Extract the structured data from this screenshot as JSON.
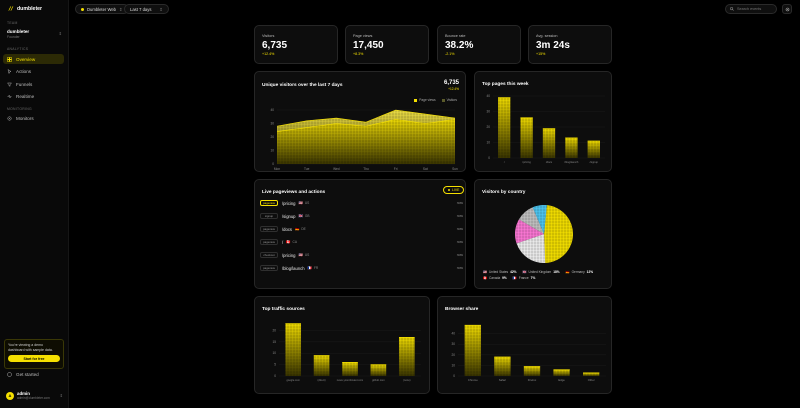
{
  "app": {
    "name": "dumbleter"
  },
  "sidebar": {
    "team_label": "TEAM",
    "team_name": "dumbleter",
    "team_sub": "Founder",
    "analytics_label": "ANALYTICS",
    "monitoring_label": "MONITORING",
    "items": [
      {
        "label": "Overview"
      },
      {
        "label": "Actions"
      },
      {
        "label": "Funnels"
      },
      {
        "label": "Realtime"
      },
      {
        "label": "Monitors"
      }
    ],
    "demo_text": "You're viewing a demo dashboard with sample data.",
    "demo_button": "Start for free",
    "get_started": "Get started",
    "user_name": "admin",
    "user_email": "admin@dumbleter.com"
  },
  "topbar": {
    "site": "Dumbleter Web",
    "range": "Last 7 days",
    "search_placeholder": "Search events"
  },
  "stats": [
    {
      "label": "Visitors",
      "value": "6,735",
      "change": "+12.4%"
    },
    {
      "label": "Page views",
      "value": "17,450",
      "change": "+8.3%"
    },
    {
      "label": "Bounce rate",
      "value": "38.2%",
      "change": "-2.1%"
    },
    {
      "label": "Avg. session",
      "value": "3m 24s",
      "change": "+15%"
    }
  ],
  "visitors_chart": {
    "title": "Unique visitors over the last 7 days",
    "total": "6,735",
    "total_change": "+12.4%",
    "legend": [
      "Page views",
      "Visitors"
    ]
  },
  "top_pages": {
    "title": "Top pages this week"
  },
  "live": {
    "title": "Live pageviews and actions",
    "badge": "LIVE",
    "rows": [
      {
        "type": "pageview",
        "path": "/pricing",
        "flag": "🇺🇸",
        "cc": "US",
        "time": "now"
      },
      {
        "type": "signup",
        "path": "/signup",
        "flag": "🇬🇧",
        "cc": "GB",
        "time": "now"
      },
      {
        "type": "pageview",
        "path": "/docs",
        "flag": "🇩🇪",
        "cc": "DE",
        "time": "now"
      },
      {
        "type": "pageview",
        "path": "/",
        "flag": "🇨🇦",
        "cc": "CA",
        "time": "now"
      },
      {
        "type": "checkout",
        "path": "/pricing",
        "flag": "🇺🇸",
        "cc": "US",
        "time": "now"
      },
      {
        "type": "pageview",
        "path": "/blog/launch",
        "flag": "🇫🇷",
        "cc": "FR",
        "time": "now"
      }
    ]
  },
  "countries": {
    "title": "Visitors by country",
    "legend": [
      {
        "flag": "🇺🇸",
        "name": "United States",
        "pct": "42%"
      },
      {
        "flag": "🇬🇧",
        "name": "United Kingdom",
        "pct": "18%"
      },
      {
        "flag": "🇩🇪",
        "name": "Germany",
        "pct": "12%"
      },
      {
        "flag": "🇨🇦",
        "name": "Canada",
        "pct": "9%"
      },
      {
        "flag": "🇫🇷",
        "name": "France",
        "pct": "7%"
      }
    ]
  },
  "sources": {
    "title": "Top traffic sources"
  },
  "browsers": {
    "title": "Browser share"
  },
  "colors": {
    "accent": "#f5e000",
    "bg": "#000000",
    "card": "#0d0d0d"
  },
  "chart_data": [
    {
      "type": "area",
      "title": "Unique visitors over the last 7 days",
      "categories": [
        "Mon",
        "Tue",
        "Wed",
        "Thu",
        "Fri",
        "Sat",
        "Sun"
      ],
      "series": [
        {
          "name": "Page views",
          "values": [
            28,
            32,
            34,
            31,
            40,
            37,
            34
          ]
        },
        {
          "name": "Visitors",
          "values": [
            24,
            27,
            30,
            28,
            33,
            30,
            33
          ]
        }
      ],
      "ylim": [
        0,
        40
      ],
      "yticks": [
        0,
        10,
        20,
        30,
        40
      ]
    },
    {
      "type": "bar",
      "title": "Top pages this week",
      "categories": [
        "/",
        "/pricing",
        "/docs",
        "/blog/launch",
        "/signup"
      ],
      "values": [
        39,
        26,
        19,
        13,
        11
      ],
      "ylim": [
        0,
        40
      ],
      "yticks": [
        0,
        10,
        20,
        30,
        40
      ]
    },
    {
      "type": "pie",
      "title": "Visitors by country",
      "categories": [
        "United States",
        "United Kingdom",
        "Germany",
        "Canada",
        "France"
      ],
      "values": [
        42,
        18,
        12,
        9,
        7
      ]
    },
    {
      "type": "bar",
      "title": "Top traffic sources",
      "categories": [
        "google.com",
        "(direct)",
        "news.ycombinator.com",
        "github.com",
        "(none)"
      ],
      "values": [
        23,
        9,
        6,
        5,
        17
      ],
      "ylim": [
        0,
        25
      ],
      "yticks": [
        0,
        5,
        10,
        15,
        20
      ]
    },
    {
      "type": "bar",
      "title": "Browser share",
      "categories": [
        "Chrome",
        "Safari",
        "Firefox",
        "Edge",
        "Other"
      ],
      "values": [
        48,
        18,
        9,
        6,
        3
      ],
      "ylim": [
        0,
        50
      ],
      "yticks": [
        0,
        10,
        20,
        30,
        40
      ]
    }
  ]
}
